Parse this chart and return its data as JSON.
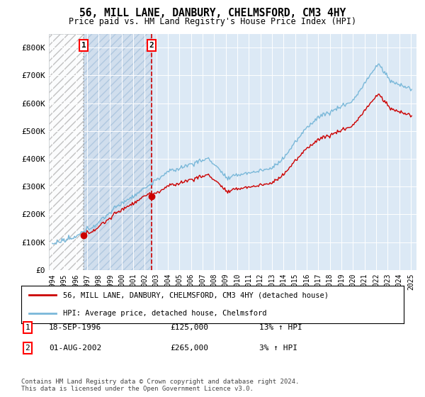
{
  "title": "56, MILL LANE, DANBURY, CHELMSFORD, CM3 4HY",
  "subtitle": "Price paid vs. HM Land Registry's House Price Index (HPI)",
  "transactions": [
    {
      "date": 1996.72,
      "price": 125000,
      "label": "1",
      "vline_color": "#aaaaaa",
      "vline_style": ":"
    },
    {
      "date": 2002.58,
      "price": 265000,
      "label": "2",
      "vline_color": "#cc0000",
      "vline_style": "--"
    }
  ],
  "transaction_details": [
    {
      "label": "1",
      "date_str": "18-SEP-1996",
      "price_str": "£125,000",
      "hpi_str": "13% ↑ HPI"
    },
    {
      "label": "2",
      "date_str": "01-AUG-2002",
      "price_str": "£265,000",
      "hpi_str": "3% ↑ HPI"
    }
  ],
  "hpi_color": "#7ab8d9",
  "price_color": "#cc0000",
  "ylim": [
    0,
    850000
  ],
  "yticks": [
    0,
    100000,
    200000,
    300000,
    400000,
    500000,
    600000,
    700000,
    800000
  ],
  "ytick_labels": [
    "£0",
    "£100K",
    "£200K",
    "£300K",
    "£400K",
    "£500K",
    "£600K",
    "£700K",
    "£800K"
  ],
  "xlim_start": 1993.7,
  "xlim_end": 2025.5,
  "xticks": [
    1994,
    1995,
    1996,
    1997,
    1998,
    1999,
    2000,
    2001,
    2002,
    2003,
    2004,
    2005,
    2006,
    2007,
    2008,
    2009,
    2010,
    2011,
    2012,
    2013,
    2014,
    2015,
    2016,
    2017,
    2018,
    2019,
    2020,
    2021,
    2022,
    2023,
    2024,
    2025
  ],
  "legend_entry1": "56, MILL LANE, DANBURY, CHELMSFORD, CM3 4HY (detached house)",
  "legend_entry2": "HPI: Average price, detached house, Chelmsford",
  "footnote": "Contains HM Land Registry data © Crown copyright and database right 2024.\nThis data is licensed under the Open Government Licence v3.0.",
  "bg_color": "#ffffff",
  "plot_bg_color": "#dce9f5",
  "hatch_color": "#c8d8e8"
}
